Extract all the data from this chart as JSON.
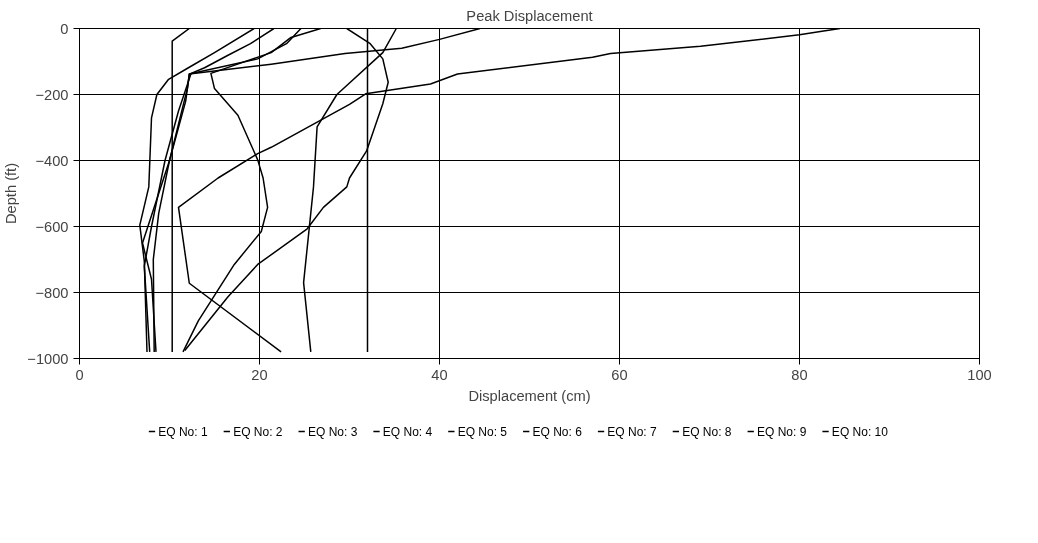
{
  "chart_data": {
    "type": "line",
    "title": "Peak Displacement",
    "xlabel": "Displacement (cm)",
    "ylabel": "Depth (ft)",
    "xlim": [
      0,
      100
    ],
    "ylim": [
      -1000,
      0
    ],
    "xticks": [
      0,
      20,
      40,
      60,
      80,
      100
    ],
    "yticks": [
      -1000,
      -800,
      -600,
      -400,
      -200,
      0
    ],
    "grid": true,
    "legend": "bottom",
    "marker": "none",
    "line_style": "solid",
    "series": [
      {
        "name": "EQ No: 1",
        "color": "#000000",
        "x": [
          19.4,
          15,
          12.1,
          9.9,
          8.6,
          8,
          7.7,
          6.7,
          7.2,
          7.5
        ],
        "values": [
          0,
          -73,
          -119,
          -154,
          -200,
          -271,
          -480,
          -596,
          -705,
          -980
        ]
      },
      {
        "name": "EQ No: 2",
        "color": "#000000",
        "x": [
          12.2,
          10.3,
          10.3
        ],
        "values": [
          0,
          -38,
          -980
        ]
      },
      {
        "name": "EQ No: 3",
        "color": "#000000",
        "x": [
          32,
          32
        ],
        "values": [
          0,
          -980
        ]
      },
      {
        "name": "EQ No: 4",
        "color": "#000000",
        "x": [
          84.5,
          82.5,
          80,
          69,
          59,
          57,
          42,
          39,
          31.8,
          30,
          21.3,
          19.8,
          15.4,
          11,
          12.2,
          22.4
        ],
        "values": [
          0,
          -8,
          -19,
          -54,
          -76,
          -87,
          -138,
          -168,
          -198,
          -230,
          -360,
          -379,
          -453,
          -542,
          -772,
          -980
        ]
      },
      {
        "name": "EQ No: 5",
        "color": "#000000",
        "x": [
          26.8,
          23.5,
          21.3,
          14.6,
          15,
          17.6,
          19.8,
          20.4,
          20.9,
          20.2,
          17.2,
          13.2,
          11.5
        ],
        "values": [
          0,
          -27,
          -73,
          -136,
          -182,
          -263,
          -398,
          -453,
          -542,
          -615,
          -715,
          -886,
          -980
        ]
      },
      {
        "name": "EQ No: 6",
        "color": "#000000",
        "x": [
          24.6,
          23,
          19.8,
          12.2,
          11.8,
          10,
          8.8,
          8.2,
          8.3
        ],
        "values": [
          0,
          -46,
          -92,
          -138,
          -220,
          -400,
          -560,
          -700,
          -980
        ]
      },
      {
        "name": "EQ No: 7",
        "color": "#000000",
        "x": [
          44.5,
          40,
          35.8,
          29.5,
          21.3,
          12.2,
          12,
          10,
          7,
          8,
          8.5
        ],
        "values": [
          0,
          -33,
          -60,
          -76,
          -108,
          -138,
          -180,
          -400,
          -650,
          -760,
          -980
        ]
      },
      {
        "name": "EQ No: 8",
        "color": "#000000",
        "x": [
          29.7,
          32.3,
          33.7,
          34.3,
          33.7,
          31.9,
          30,
          29.7,
          27.1,
          25.3,
          19.8,
          16.5,
          11.7
        ],
        "values": [
          0,
          -46,
          -92,
          -163,
          -228,
          -371,
          -453,
          -480,
          -542,
          -607,
          -715,
          -813,
          -976
        ]
      },
      {
        "name": "EQ No: 9",
        "color": "#000000",
        "x": [
          35.2,
          33.7,
          28.6,
          26.4,
          26,
          24.9,
          25.7
        ],
        "values": [
          0,
          -73,
          -200,
          -298,
          -480,
          -770,
          -980
        ]
      },
      {
        "name": "EQ No: 10",
        "color": "#000000",
        "x": [
          21.6,
          19,
          16.5,
          13.9,
          12.4,
          11,
          9.5,
          8,
          7.2,
          7.8
        ],
        "values": [
          0,
          -46,
          -81,
          -119,
          -136,
          -250,
          -400,
          -600,
          -720,
          -980
        ]
      }
    ]
  }
}
